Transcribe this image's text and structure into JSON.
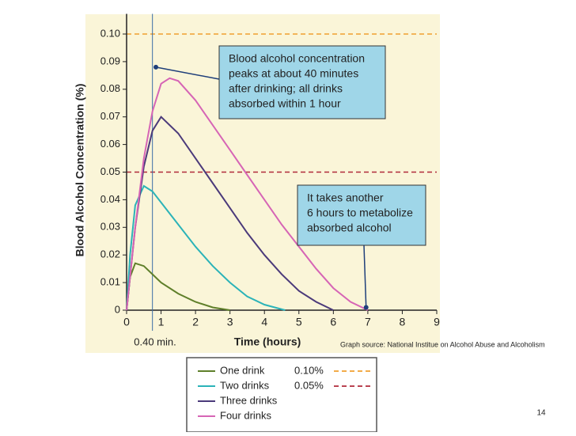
{
  "chart_data": {
    "type": "line",
    "xlabel": "Time (hours)",
    "ylabel": "Blood Alcohol Concentration (%)",
    "xlim": [
      0,
      9
    ],
    "ylim": [
      0,
      0.105
    ],
    "xticks": [
      0,
      1,
      2,
      3,
      4,
      5,
      6,
      7,
      8,
      9
    ],
    "yticks": [
      0,
      0.01,
      0.02,
      0.03,
      0.04,
      0.05,
      0.06,
      0.07,
      0.08,
      0.09,
      {
        "value": 0.1,
        "label": "0.10"
      }
    ],
    "series": [
      {
        "name": "One drink",
        "color": "#5f7f2a",
        "x": [
          0,
          0.1,
          0.25,
          0.5,
          0.75,
          1,
          1.5,
          2,
          2.5,
          3
        ],
        "values": [
          0,
          0.012,
          0.017,
          0.016,
          0.013,
          0.01,
          0.006,
          0.003,
          0.001,
          0
        ]
      },
      {
        "name": "Two drinks",
        "color": "#2bb3b8",
        "x": [
          0,
          0.1,
          0.25,
          0.5,
          0.75,
          1,
          1.5,
          2,
          2.5,
          3,
          3.5,
          4,
          4.6
        ],
        "values": [
          0,
          0.02,
          0.038,
          0.045,
          0.043,
          0.039,
          0.031,
          0.023,
          0.016,
          0.01,
          0.005,
          0.002,
          0
        ]
      },
      {
        "name": "Three drinks",
        "color": "#4b3a7a",
        "x": [
          0,
          0.25,
          0.5,
          0.75,
          1,
          1.5,
          2,
          2.5,
          3,
          3.5,
          4,
          4.5,
          5,
          5.5,
          6
        ],
        "values": [
          0,
          0.03,
          0.052,
          0.065,
          0.07,
          0.064,
          0.055,
          0.046,
          0.037,
          0.028,
          0.02,
          0.013,
          0.007,
          0.003,
          0
        ]
      },
      {
        "name": "Four drinks",
        "color": "#d665b5",
        "x": [
          0,
          0.25,
          0.5,
          0.75,
          1,
          1.25,
          1.5,
          2,
          2.5,
          3,
          3.5,
          4,
          4.5,
          5,
          5.5,
          6,
          6.5,
          7
        ],
        "values": [
          0,
          0.03,
          0.055,
          0.072,
          0.082,
          0.084,
          0.083,
          0.076,
          0.067,
          0.058,
          0.049,
          0.04,
          0.031,
          0.023,
          0.015,
          0.008,
          0.003,
          0
        ]
      }
    ],
    "reference_lines": [
      {
        "value": 0.1,
        "label": "0.10%",
        "color": "#f0a030"
      },
      {
        "value": 0.05,
        "label": "0.05%",
        "color": "#b02a3a"
      }
    ],
    "marker_line": {
      "x": 0.75,
      "label": "0.40 min."
    },
    "callouts": [
      {
        "lines": [
          "Blood alcohol concentration",
          "peaks at about 40 minutes",
          "after drinking; all drinks",
          "absorbed within 1 hour"
        ],
        "point_x": 0.85,
        "point_y": 0.088
      },
      {
        "lines": [
          "It takes another",
          "6 hours to metabolize",
          "absorbed alcohol"
        ],
        "point_x": 6.95,
        "point_y": 0.001
      }
    ],
    "source": "Graph source: National Institue on Alcohol Abuse and Alcoholism",
    "page_number": "14"
  }
}
